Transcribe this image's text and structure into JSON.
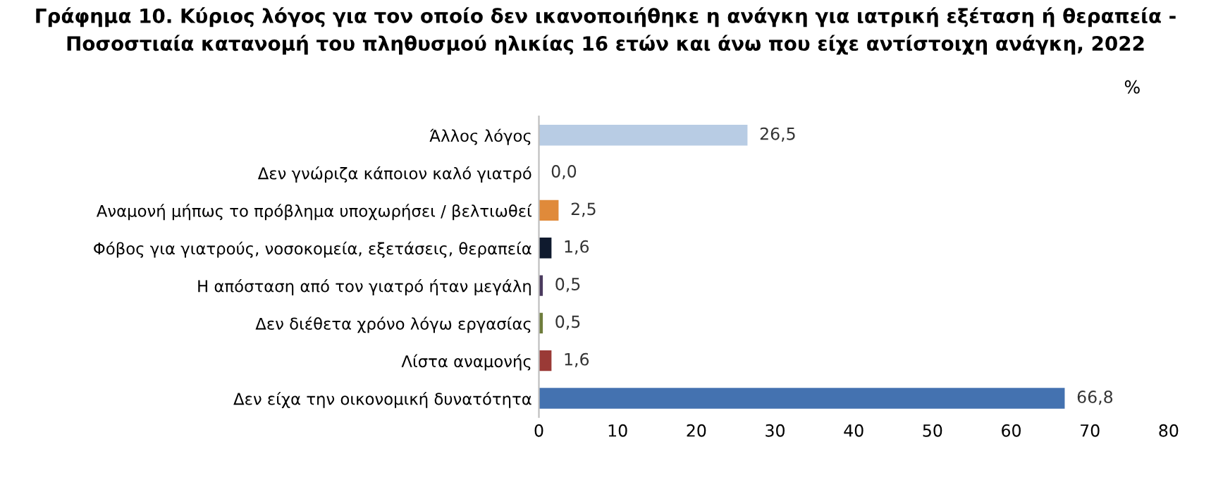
{
  "chart_data": {
    "type": "bar",
    "orientation": "horizontal",
    "title": "Γράφημα 10. Κύριος λόγος για τον οποίο δεν ικανοποιήθηκε η ανάγκη για ιατρική εξέταση ή θεραπεία -\nΠοσοστιαία κατανομή του πληθυσμού ηλικίας 16 ετών και άνω που είχε αντίστοιχη ανάγκη, 2022",
    "annotations": [
      "%"
    ],
    "categories": [
      "Άλλος λόγος",
      "Δεν γνώριζα κάποιον καλό γιατρό",
      "Αναμονή μήπως το πρόβλημα υποχωρήσει / βελτιωθεί",
      "Φόβος για γιατρούς, νοσοκομεία, εξετάσεις, θεραπεία",
      "Η απόσταση από τον γιατρό ήταν μεγάλη",
      "Δεν διέθετα χρόνο λόγω εργασίας",
      "Λίστα αναμονής",
      "Δεν είχα την οικονομική δυνατότητα"
    ],
    "values": [
      26.5,
      0.0,
      2.5,
      1.6,
      0.5,
      0.5,
      1.6,
      66.8
    ],
    "value_labels": [
      "26,5",
      "0,0",
      "2,5",
      "1,6",
      "0,5",
      "0,5",
      "1,6",
      "66,8"
    ],
    "colors": [
      "#b8cce4",
      "#ffffff",
      "#e08a3a",
      "#0f1a2e",
      "#4a3a5e",
      "#6e7d3c",
      "#9a3a36",
      "#4472b0"
    ],
    "xlim": [
      0,
      80
    ],
    "xticks": [
      0,
      10,
      20,
      30,
      40,
      50,
      60,
      70,
      80
    ],
    "grid": false,
    "legend": false
  }
}
